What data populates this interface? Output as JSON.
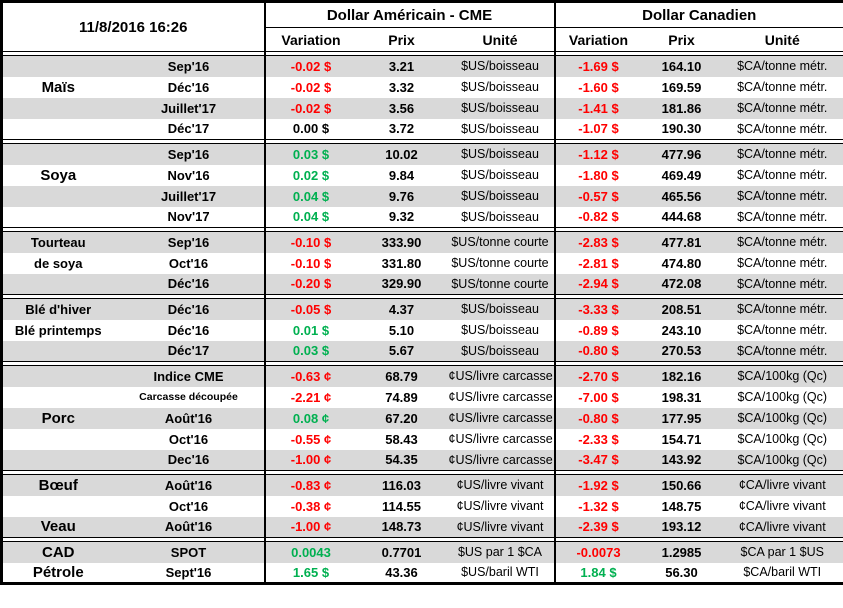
{
  "colors": {
    "negative": "#FF0000",
    "positive": "#00B050",
    "neutral": "#000000",
    "stripe": "#D9D9D9",
    "border": "#000000"
  },
  "header": {
    "timestamp": "11/8/2016 16:26",
    "us_title": "Dollar Américain - CME",
    "ca_title": "Dollar Canadien",
    "columns": {
      "variation": "Variation",
      "price": "Prix",
      "unit": "Unité"
    }
  },
  "groups": [
    {
      "name": "Maïs",
      "rows": [
        {
          "label": "",
          "month": "Sep'16",
          "us": {
            "var": "-0.02 $",
            "dir": "neg",
            "price": "3.21",
            "unit": "$US/boisseau"
          },
          "ca": {
            "var": "-1.69 $",
            "dir": "neg",
            "price": "164.10",
            "unit": "$CA/tonne métr."
          }
        },
        {
          "label": "Maïs",
          "month": "Déc'16",
          "us": {
            "var": "-0.02 $",
            "dir": "neg",
            "price": "3.32",
            "unit": "$US/boisseau"
          },
          "ca": {
            "var": "-1.60 $",
            "dir": "neg",
            "price": "169.59",
            "unit": "$CA/tonne métr."
          }
        },
        {
          "label": "",
          "month": "Juillet'17",
          "us": {
            "var": "-0.02 $",
            "dir": "neg",
            "price": "3.56",
            "unit": "$US/boisseau"
          },
          "ca": {
            "var": "-1.41 $",
            "dir": "neg",
            "price": "181.86",
            "unit": "$CA/tonne métr."
          }
        },
        {
          "label": "",
          "month": "Déc'17",
          "us": {
            "var": "0.00 $",
            "dir": "zero",
            "price": "3.72",
            "unit": "$US/boisseau"
          },
          "ca": {
            "var": "-1.07 $",
            "dir": "neg",
            "price": "190.30",
            "unit": "$CA/tonne métr."
          }
        }
      ]
    },
    {
      "name": "Soya",
      "rows": [
        {
          "label": "",
          "month": "Sep'16",
          "us": {
            "var": "0.03 $",
            "dir": "pos",
            "price": "10.02",
            "unit": "$US/boisseau"
          },
          "ca": {
            "var": "-1.12 $",
            "dir": "neg",
            "price": "477.96",
            "unit": "$CA/tonne métr."
          }
        },
        {
          "label": "Soya",
          "month": "Nov'16",
          "us": {
            "var": "0.02 $",
            "dir": "pos",
            "price": "9.84",
            "unit": "$US/boisseau"
          },
          "ca": {
            "var": "-1.80 $",
            "dir": "neg",
            "price": "469.49",
            "unit": "$CA/tonne métr."
          }
        },
        {
          "label": "",
          "month": "Juillet'17",
          "us": {
            "var": "0.04 $",
            "dir": "pos",
            "price": "9.76",
            "unit": "$US/boisseau"
          },
          "ca": {
            "var": "-0.57 $",
            "dir": "neg",
            "price": "465.56",
            "unit": "$CA/tonne métr."
          }
        },
        {
          "label": "",
          "month": "Nov'17",
          "us": {
            "var": "0.04 $",
            "dir": "pos",
            "price": "9.32",
            "unit": "$US/boisseau"
          },
          "ca": {
            "var": "-0.82 $",
            "dir": "neg",
            "price": "444.68",
            "unit": "$CA/tonne métr."
          }
        }
      ]
    },
    {
      "name": "Tourteau de soya",
      "rows": [
        {
          "label": "Tourteau",
          "label_small": true,
          "month": "Sep'16",
          "us": {
            "var": "-0.10 $",
            "dir": "neg",
            "price": "333.90",
            "unit": "$US/tonne courte"
          },
          "ca": {
            "var": "-2.83 $",
            "dir": "neg",
            "price": "477.81",
            "unit": "$CA/tonne métr."
          }
        },
        {
          "label": "de soya",
          "label_small": true,
          "month": "Oct'16",
          "us": {
            "var": "-0.10 $",
            "dir": "neg",
            "price": "331.80",
            "unit": "$US/tonne courte"
          },
          "ca": {
            "var": "-2.81 $",
            "dir": "neg",
            "price": "474.80",
            "unit": "$CA/tonne métr."
          }
        },
        {
          "label": "",
          "month": "Déc'16",
          "us": {
            "var": "-0.20 $",
            "dir": "neg",
            "price": "329.90",
            "unit": "$US/tonne courte"
          },
          "ca": {
            "var": "-2.94 $",
            "dir": "neg",
            "price": "472.08",
            "unit": "$CA/tonne métr."
          }
        }
      ]
    },
    {
      "name": "Blé",
      "rows": [
        {
          "label": "Blé d'hiver",
          "label_small": true,
          "month": "Déc'16",
          "us": {
            "var": "-0.05 $",
            "dir": "neg",
            "price": "4.37",
            "unit": "$US/boisseau"
          },
          "ca": {
            "var": "-3.33 $",
            "dir": "neg",
            "price": "208.51",
            "unit": "$CA/tonne métr."
          }
        },
        {
          "label": "Blé printemps",
          "label_small": true,
          "month": "Déc'16",
          "us": {
            "var": "0.01 $",
            "dir": "pos",
            "price": "5.10",
            "unit": "$US/boisseau"
          },
          "ca": {
            "var": "-0.89 $",
            "dir": "neg",
            "price": "243.10",
            "unit": "$CA/tonne métr."
          }
        },
        {
          "label": "",
          "month": "Déc'17",
          "us": {
            "var": "0.03 $",
            "dir": "pos",
            "price": "5.67",
            "unit": "$US/boisseau"
          },
          "ca": {
            "var": "-0.80 $",
            "dir": "neg",
            "price": "270.53",
            "unit": "$CA/tonne métr."
          }
        }
      ]
    },
    {
      "name": "Porc",
      "rows": [
        {
          "label": "",
          "month": "Indice CME",
          "us": {
            "var": "-0.63 ¢",
            "dir": "neg",
            "price": "68.79",
            "unit": "¢US/livre carcasse"
          },
          "ca": {
            "var": "-2.70 $",
            "dir": "neg",
            "price": "182.16",
            "unit": "$CA/100kg (Qc)"
          }
        },
        {
          "label": "",
          "month": "Carcasse découpée",
          "month_small": true,
          "us": {
            "var": "-2.21 ¢",
            "dir": "neg",
            "price": "74.89",
            "unit": "¢US/livre carcasse"
          },
          "ca": {
            "var": "-7.00 $",
            "dir": "neg",
            "price": "198.31",
            "unit": "$CA/100kg (Qc)"
          }
        },
        {
          "label": "Porc",
          "month": "Août'16",
          "us": {
            "var": "0.08 ¢",
            "dir": "pos",
            "price": "67.20",
            "unit": "¢US/livre carcasse"
          },
          "ca": {
            "var": "-0.80 $",
            "dir": "neg",
            "price": "177.95",
            "unit": "$CA/100kg (Qc)"
          }
        },
        {
          "label": "",
          "month": "Oct'16",
          "us": {
            "var": "-0.55 ¢",
            "dir": "neg",
            "price": "58.43",
            "unit": "¢US/livre carcasse"
          },
          "ca": {
            "var": "-2.33 $",
            "dir": "neg",
            "price": "154.71",
            "unit": "$CA/100kg (Qc)"
          }
        },
        {
          "label": "",
          "month": "Dec'16",
          "us": {
            "var": "-1.00 ¢",
            "dir": "neg",
            "price": "54.35",
            "unit": "¢US/livre carcasse"
          },
          "ca": {
            "var": "-3.47 $",
            "dir": "neg",
            "price": "143.92",
            "unit": "$CA/100kg (Qc)"
          }
        }
      ]
    },
    {
      "name": "Bœuf / Veau",
      "rows": [
        {
          "label": "Bœuf",
          "month": "Août'16",
          "us": {
            "var": "-0.83 ¢",
            "dir": "neg",
            "price": "116.03",
            "unit": "¢US/livre vivant"
          },
          "ca": {
            "var": "-1.92 $",
            "dir": "neg",
            "price": "150.66",
            "unit": "¢CA/livre vivant"
          }
        },
        {
          "label": "",
          "month": "Oct'16",
          "us": {
            "var": "-0.38 ¢",
            "dir": "neg",
            "price": "114.55",
            "unit": "¢US/livre vivant"
          },
          "ca": {
            "var": "-1.32 $",
            "dir": "neg",
            "price": "148.75",
            "unit": "¢CA/livre vivant"
          }
        },
        {
          "label": "Veau",
          "month": "Août'16",
          "us": {
            "var": "-1.00 ¢",
            "dir": "neg",
            "price": "148.73",
            "unit": "¢US/livre vivant"
          },
          "ca": {
            "var": "-2.39 $",
            "dir": "neg",
            "price": "193.12",
            "unit": "¢CA/livre vivant"
          }
        }
      ]
    },
    {
      "name": "CAD / Pétrole",
      "rows": [
        {
          "label": "CAD",
          "month": "SPOT",
          "us": {
            "var": "0.0043",
            "dir": "pos",
            "price": "0.7701",
            "unit": "$US par 1 $CA"
          },
          "ca": {
            "var": "-0.0073",
            "dir": "neg",
            "price": "1.2985",
            "unit": "$CA par 1 $US"
          }
        },
        {
          "label": "Pétrole",
          "month": "Sept'16",
          "us": {
            "var": "1.65 $",
            "dir": "pos",
            "price": "43.36",
            "unit": "$US/baril WTI"
          },
          "ca": {
            "var": "1.84 $",
            "dir": "pos",
            "price": "56.30",
            "unit": "$CA/baril WTI"
          }
        }
      ]
    }
  ]
}
